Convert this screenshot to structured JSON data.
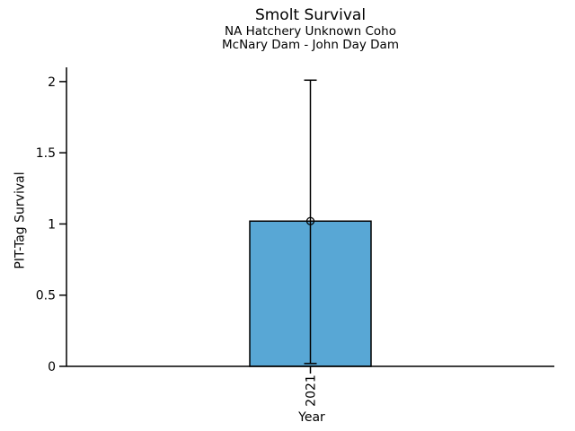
{
  "chart_data": {
    "type": "bar",
    "title": "Smolt Survival",
    "subtitle": [
      "NA Hatchery Unknown Coho",
      "McNary Dam - John Day Dam"
    ],
    "xlabel": "Year",
    "ylabel": "PIT-Tag Survival",
    "categories": [
      "2021"
    ],
    "values": [
      1.02
    ],
    "error_bars": {
      "lower": [
        0.02
      ],
      "upper": [
        2.01
      ]
    },
    "marker": "open-circle",
    "ytick_values": [
      0,
      0.5,
      1,
      1.5,
      2
    ],
    "ytick_labels": [
      "0",
      "0.5",
      "1",
      "1.5",
      "2"
    ],
    "ylim": [
      0,
      2.1
    ],
    "xtick_rotation_deg": 90,
    "grid": false,
    "legend": "none",
    "colors": {
      "bar_fill": "#58A7D5",
      "bar_edge": "#000000",
      "error_line": "#000000",
      "text": "#000000",
      "background": "#FFFFFF"
    }
  }
}
